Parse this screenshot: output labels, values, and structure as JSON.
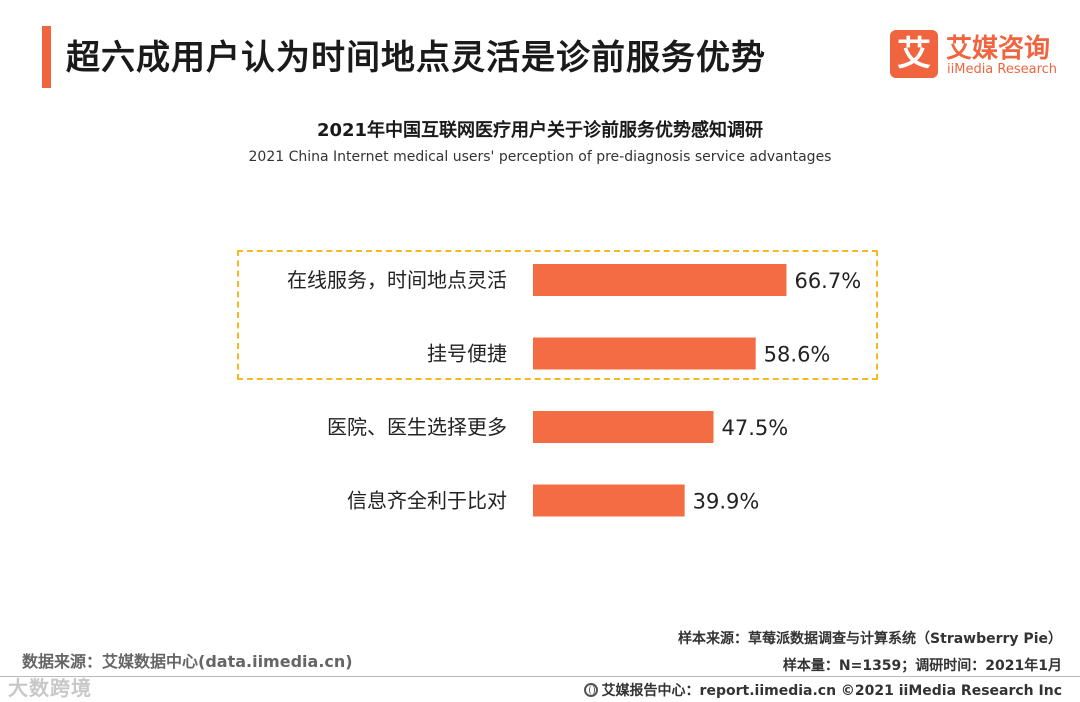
{
  "header": {
    "title": "超六成用户认为时间地点灵活是诊前服务优势",
    "logo": {
      "mark": "艾",
      "name_cn": "艾媒咨询",
      "name_en": "iiMedia Research"
    }
  },
  "chart_data": {
    "type": "bar",
    "orientation": "horizontal",
    "title": "2021年中国互联网医疗用户关于诊前服务优势感知调研",
    "subtitle": "2021 China Internet medical users' perception of pre-diagnosis service advantages",
    "categories": [
      "在线服务，时间地点灵活",
      "挂号便捷",
      "医院、医生选择更多",
      "信息齐全利于比对"
    ],
    "values": [
      66.7,
      58.6,
      47.5,
      39.9
    ],
    "value_labels": [
      "66.7%",
      "58.6%",
      "47.5%",
      "39.9%"
    ],
    "unit": "%",
    "bar_color": "#f36c43",
    "highlight_color": "#f5b91f",
    "highlighted_categories": [
      "在线服务，时间地点灵活",
      "挂号便捷"
    ],
    "grid": false,
    "legend": "none"
  },
  "footer": {
    "source": "数据来源：艾媒数据中心(data.iimedia.cn)",
    "sample_source": "样本来源：草莓派数据调查与计算系统（Strawberry Pie）",
    "sample_info": "样本量：N=1359；调研时间：2021年1月",
    "report_center": "艾媒报告中心：report.iimedia.cn  ©2021  iiMedia Research  Inc",
    "watermark": "大数跨境"
  }
}
